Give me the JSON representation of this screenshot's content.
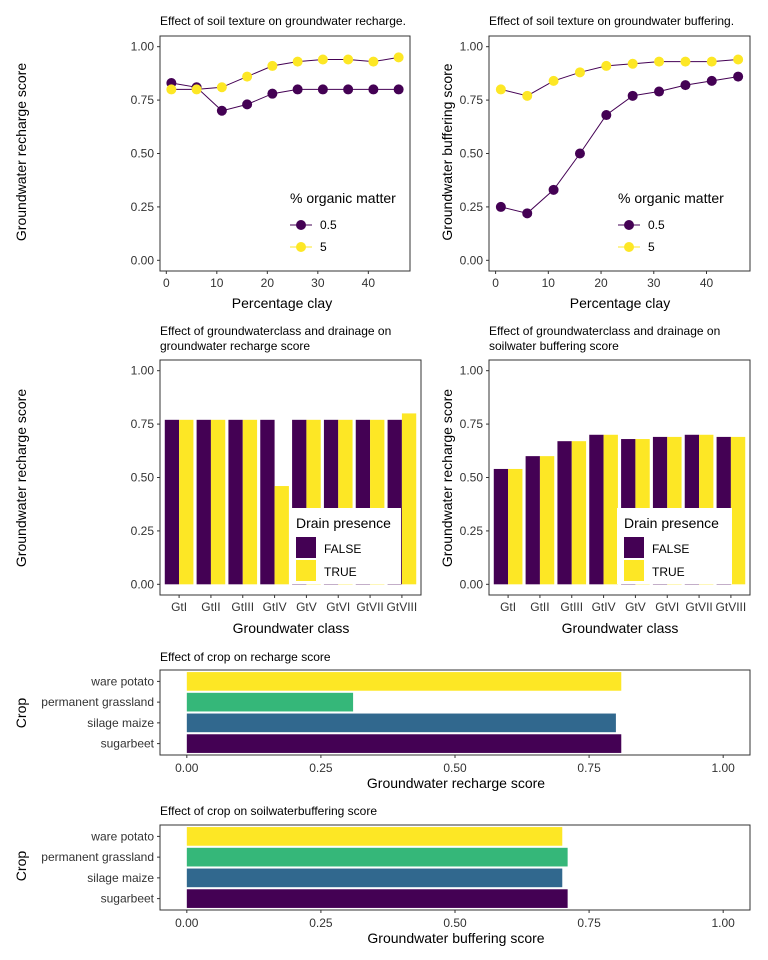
{
  "colors": {
    "dark": "#440154",
    "yellow": "#fde725",
    "teal": "#35b779",
    "blue": "#31688e"
  },
  "chart_data": [
    {
      "id": "recharge-clay",
      "type": "line",
      "title": "Effect of soil texture on groundwater recharge.",
      "xlabel": "Percentage clay",
      "ylabel": "Groundwater recharge score",
      "x": [
        1,
        6,
        11,
        16,
        21,
        26,
        31,
        36,
        41,
        46
      ],
      "xlim": [
        -1.25,
        48.25
      ],
      "xticks": [
        0,
        10,
        20,
        30,
        40
      ],
      "ylim": [
        -0.05,
        1.05
      ],
      "yticks": [
        "0.00",
        "0.25",
        "0.50",
        "0.75",
        "1.00"
      ],
      "legend_title": "% organic matter",
      "legend_position": "bottom-right",
      "grid": false,
      "series": [
        {
          "name": "0.5",
          "color": "#440154",
          "values": [
            0.83,
            0.81,
            0.7,
            0.73,
            0.78,
            0.8,
            0.8,
            0.8,
            0.8,
            0.8
          ]
        },
        {
          "name": "5",
          "color": "#fde725",
          "values": [
            0.8,
            0.8,
            0.81,
            0.86,
            0.91,
            0.93,
            0.94,
            0.94,
            0.93,
            0.95
          ]
        }
      ]
    },
    {
      "id": "buffering-clay",
      "type": "line",
      "title": "Effect of soil texture on groundwater buffering.",
      "xlabel": "Percentage clay",
      "ylabel": "Groundwater buffering score",
      "x": [
        1,
        6,
        11,
        16,
        21,
        26,
        31,
        36,
        41,
        46
      ],
      "xlim": [
        -1.25,
        48.25
      ],
      "xticks": [
        0,
        10,
        20,
        30,
        40
      ],
      "ylim": [
        -0.05,
        1.05
      ],
      "yticks": [
        "0.00",
        "0.25",
        "0.50",
        "0.75",
        "1.00"
      ],
      "legend_title": "% organic matter",
      "legend_position": "bottom-right",
      "grid": false,
      "series": [
        {
          "name": "0.5",
          "color": "#440154",
          "values": [
            0.25,
            0.22,
            0.33,
            0.5,
            0.68,
            0.77,
            0.79,
            0.82,
            0.84,
            0.86
          ]
        },
        {
          "name": "5",
          "color": "#fde725",
          "values": [
            0.8,
            0.77,
            0.84,
            0.88,
            0.91,
            0.92,
            0.93,
            0.93,
            0.93,
            0.94
          ]
        }
      ]
    },
    {
      "id": "recharge-gwclass",
      "type": "bar",
      "title": "Effect of groundwaterclass and drainage on groundwater recharge score",
      "xlabel": "Groundwater class",
      "ylabel": "Groundwater recharge score",
      "categories": [
        "GtI",
        "GtII",
        "GtIII",
        "GtIV",
        "GtV",
        "GtVI",
        "GtVII",
        "GtVIII"
      ],
      "ylim": [
        -0.05,
        1.05
      ],
      "yticks": [
        "0.00",
        "0.25",
        "0.50",
        "0.75",
        "1.00"
      ],
      "legend_title": "Drain presence",
      "legend_position": "bottom-right",
      "grid": false,
      "series": [
        {
          "name": "FALSE",
          "color": "#440154",
          "values": [
            0.77,
            0.77,
            0.77,
            0.77,
            0.77,
            0.77,
            0.77,
            0.77
          ]
        },
        {
          "name": "TRUE",
          "color": "#fde725",
          "values": [
            0.77,
            0.77,
            0.77,
            0.46,
            0.77,
            0.77,
            0.77,
            0.8
          ]
        }
      ]
    },
    {
      "id": "buffering-gwclass",
      "type": "bar",
      "title": "Effect of groundwaterclass and drainage on soilwater buffering score",
      "xlabel": "Groundwater class",
      "ylabel": "Groundwater recharge score",
      "categories": [
        "GtI",
        "GtII",
        "GtIII",
        "GtIV",
        "GtV",
        "GtVI",
        "GtVII",
        "GtVIII"
      ],
      "ylim": [
        -0.05,
        1.05
      ],
      "yticks": [
        "0.00",
        "0.25",
        "0.50",
        "0.75",
        "1.00"
      ],
      "legend_title": "Drain presence",
      "legend_position": "bottom-right",
      "grid": false,
      "series": [
        {
          "name": "FALSE",
          "color": "#440154",
          "values": [
            0.54,
            0.6,
            0.67,
            0.7,
            0.68,
            0.69,
            0.7,
            0.69
          ]
        },
        {
          "name": "TRUE",
          "color": "#fde725",
          "values": [
            0.54,
            0.6,
            0.67,
            0.7,
            0.68,
            0.69,
            0.7,
            0.69
          ]
        }
      ]
    },
    {
      "id": "recharge-crop",
      "type": "bar",
      "orientation": "horizontal",
      "title": "Effect of crop on recharge score",
      "xlabel": "Groundwater recharge score",
      "ylabel": "Crop",
      "categories": [
        "sugarbeet",
        "silage maize",
        "permanent grassland",
        "ware potato"
      ],
      "values": [
        0.81,
        0.8,
        0.31,
        0.81
      ],
      "colors": [
        "#440154",
        "#31688e",
        "#35b779",
        "#fde725"
      ],
      "xlim": [
        -0.05,
        1.05
      ],
      "xticks": [
        "0.00",
        "0.25",
        "0.50",
        "0.75",
        "1.00"
      ],
      "grid": false
    },
    {
      "id": "buffering-crop",
      "type": "bar",
      "orientation": "horizontal",
      "title": "Effect of crop on soilwaterbuffering score",
      "xlabel": "Groundwater buffering score",
      "ylabel": "Crop",
      "categories": [
        "sugarbeet",
        "silage maize",
        "permanent grassland",
        "ware potato"
      ],
      "values": [
        0.71,
        0.7,
        0.71,
        0.7
      ],
      "colors": [
        "#440154",
        "#31688e",
        "#35b779",
        "#fde725"
      ],
      "xlim": [
        -0.05,
        1.05
      ],
      "xticks": [
        "0.00",
        "0.25",
        "0.50",
        "0.75",
        "1.00"
      ],
      "grid": false
    }
  ]
}
